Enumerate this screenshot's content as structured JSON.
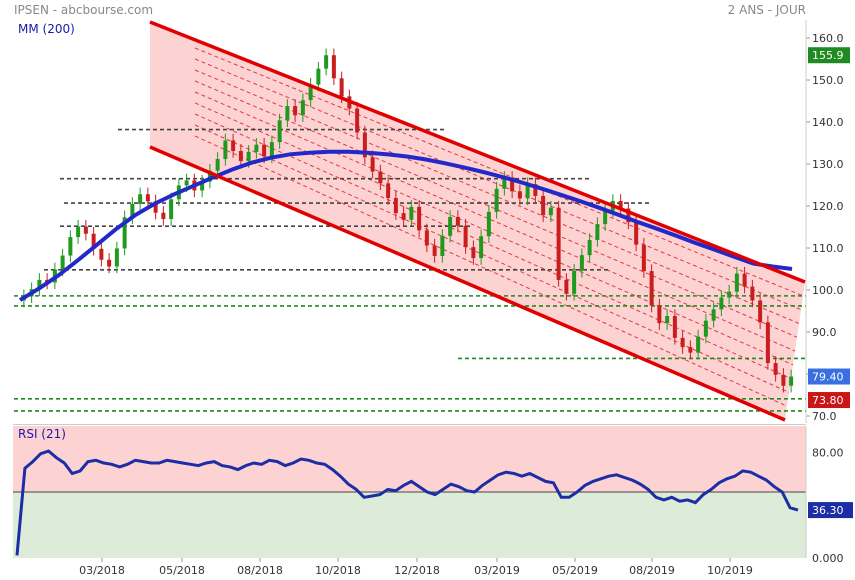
{
  "header": {
    "symbol_source": "IPSEN - abcbourse.com",
    "period": "2 ANS - JOUR"
  },
  "chart_data": [
    {
      "type": "candlestick",
      "indicator_label": "MM (200)",
      "y_ticks": [
        "160.0",
        "150.0",
        "140.0",
        "130.0",
        "120.0",
        "110.0",
        "100.0",
        "90.0",
        "80.0",
        "70.0"
      ],
      "ylim": [
        68,
        163
      ],
      "x_ticks": [
        "03/2018",
        "05/2018",
        "08/2018",
        "10/2018",
        "12/2018",
        "03/2019",
        "05/2019",
        "08/2019",
        "10/2019"
      ],
      "price_badges": [
        {
          "value": "155.9",
          "color": "#1f8a1f"
        },
        {
          "value": "79.40",
          "color": "#3a6fe0"
        },
        {
          "value": "73.80",
          "color": "#c91616"
        }
      ],
      "close_series": [
        98.5,
        100.2,
        102.4,
        101.8,
        104.9,
        108.2,
        112.6,
        115.1,
        113.4,
        109.8,
        107.2,
        105.6,
        109.9,
        117.3,
        120.5,
        122.8,
        121.1,
        118.4,
        116.9,
        121.6,
        124.9,
        126.1,
        123.7,
        125.8,
        128.4,
        131.2,
        135.6,
        133.1,
        130.7,
        132.9,
        134.6,
        131.8,
        135.2,
        140.4,
        143.8,
        141.6,
        145.2,
        148.9,
        152.7,
        155.9,
        150.4,
        146.1,
        143.2,
        137.5,
        131.6,
        128.2,
        125.4,
        121.9,
        118.3,
        116.7,
        119.8,
        114.2,
        110.6,
        108.1,
        112.9,
        117.4,
        115.3,
        110.2,
        107.6,
        112.8,
        118.6,
        124.1,
        126.7,
        123.5,
        121.8,
        125.2,
        122.4,
        117.8,
        119.6,
        102.4,
        99.1,
        104.6,
        108.3,
        111.9,
        115.7,
        118.9,
        121.2,
        119.4,
        116.1,
        110.8,
        104.5,
        96.3,
        92.1,
        93.8,
        88.6,
        86.4,
        85.1,
        88.9,
        92.7,
        95.4,
        98.2,
        99.6,
        103.9,
        100.8,
        97.5,
        92.3,
        82.6,
        79.8,
        77.2,
        79.4
      ],
      "moving_average": [
        97.6,
        100.4,
        103.5,
        107.1,
        110.8,
        114.6,
        117.9,
        120.6,
        122.8,
        124.8,
        126.8,
        128.7,
        130.3,
        131.5,
        132.3,
        132.7,
        132.9,
        132.9,
        132.7,
        132.3,
        131.8,
        131.1,
        130.2,
        129.2,
        128.1,
        126.9,
        125.6,
        124.2,
        122.7,
        121.2,
        119.6,
        117.9,
        116.2,
        114.6,
        112.9,
        111.2,
        109.6,
        107.9,
        106.3,
        105.6,
        105.0
      ],
      "channel": {
        "upper_line": [
          [
            150,
            22
          ],
          [
            805,
            282
          ]
        ],
        "lower_line": [
          [
            150,
            147
          ],
          [
            785,
            420
          ]
        ]
      },
      "support_levels": [
        138.2,
        126.5,
        120.7,
        115.2,
        104.8,
        98.6,
        96.2,
        83.7,
        74.1,
        71.2
      ]
    },
    {
      "type": "line",
      "indicator_label": "RSI (21)",
      "y_ticks": [
        "80.00",
        "0.000"
      ],
      "ylim": [
        0,
        100
      ],
      "overbought": 70,
      "oversold": 30,
      "current_value": "36.30",
      "current_color": "#1b2ea6",
      "values": [
        2,
        68,
        73,
        79,
        81,
        76,
        72,
        64,
        66,
        73,
        74,
        72,
        71,
        69,
        71,
        74,
        73,
        72,
        72,
        74,
        73,
        72,
        71,
        70,
        72,
        73,
        70,
        69,
        67,
        70,
        72,
        71,
        74,
        73,
        70,
        72,
        75,
        74,
        72,
        71,
        67,
        62,
        56,
        52,
        46,
        47,
        48,
        52,
        51,
        55,
        58,
        54,
        50,
        48,
        52,
        56,
        54,
        51,
        50,
        55,
        59,
        63,
        65,
        64,
        62,
        64,
        61,
        58,
        57,
        46,
        46,
        50,
        55,
        58,
        60,
        62,
        63,
        61,
        59,
        56,
        52,
        46,
        44,
        46,
        43,
        44,
        42,
        48,
        52,
        57,
        60,
        62,
        66,
        65,
        62,
        59,
        54,
        50,
        38,
        36.3
      ]
    }
  ]
}
